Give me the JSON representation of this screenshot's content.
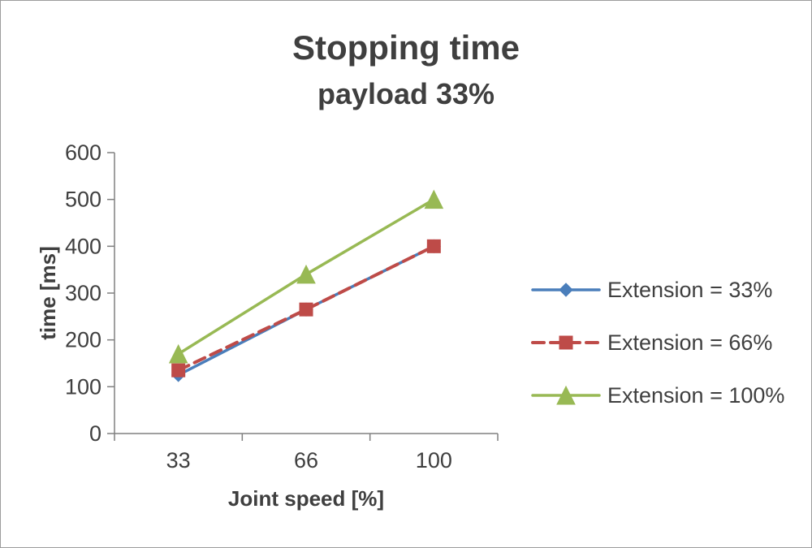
{
  "title": "Stopping time",
  "subtitle": "payload 33%",
  "chart_data": {
    "type": "line",
    "categories": [
      "33",
      "66",
      "100"
    ],
    "series": [
      {
        "name": "Extension = 33%",
        "values": [
          125,
          265,
          400
        ],
        "color": "#4a7ebb",
        "marker": "diamond",
        "dash": "solid"
      },
      {
        "name": "Extension = 66%",
        "values": [
          135,
          265,
          400
        ],
        "color": "#be4b48",
        "marker": "square",
        "dash": "dashed"
      },
      {
        "name": "Extension = 100%",
        "values": [
          170,
          340,
          500
        ],
        "color": "#98b954",
        "marker": "triangle",
        "dash": "solid"
      }
    ],
    "xlabel": "Joint speed [%]",
    "ylabel": "time [ms]",
    "ylim": [
      0,
      600
    ],
    "ytick_step": 100,
    "grid": false,
    "legend_position": "right",
    "axis_color": "#808080",
    "text_color": "#3f3f3f"
  }
}
